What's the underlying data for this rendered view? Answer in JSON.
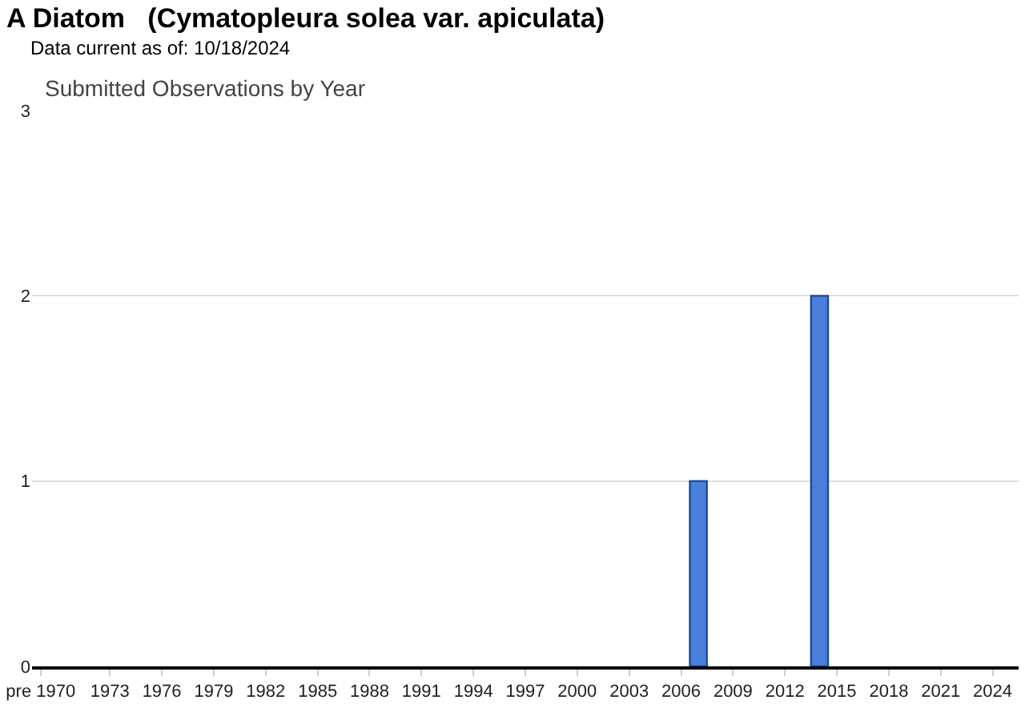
{
  "chart_data": {
    "type": "bar",
    "title": "A Diatom   (Cymatopleura solea var. apiculata)",
    "subtitle": "Data current as of: 10/18/2024",
    "annotations": [
      "Submitted Observations by Year"
    ],
    "categories": [
      "pre 1970",
      null,
      null,
      null,
      "1973",
      null,
      null,
      "1976",
      null,
      null,
      "1979",
      null,
      null,
      "1982",
      null,
      null,
      "1985",
      null,
      null,
      "1988",
      null,
      null,
      "1991",
      null,
      null,
      "1994",
      null,
      null,
      "1997",
      null,
      null,
      "2000",
      null,
      null,
      "2003",
      null,
      null,
      "2006",
      null,
      null,
      "2009",
      null,
      null,
      "2012",
      null,
      null,
      "2015",
      null,
      null,
      "2018",
      null,
      null,
      "2021",
      null,
      null,
      "2024",
      null
    ],
    "values": [
      0,
      0,
      0,
      0,
      0,
      0,
      0,
      0,
      0,
      0,
      0,
      0,
      0,
      0,
      0,
      0,
      0,
      0,
      0,
      0,
      0,
      0,
      0,
      0,
      0,
      0,
      0,
      0,
      0,
      0,
      0,
      0,
      0,
      0,
      0,
      0,
      0,
      0,
      1,
      0,
      0,
      0,
      0,
      0,
      0,
      2,
      0,
      0,
      0,
      0,
      0,
      0,
      0,
      0,
      0,
      0,
      0
    ],
    "color": "#4a80dc",
    "ylim": [
      0,
      3
    ],
    "yticks": [
      0,
      1,
      2,
      3
    ],
    "grid": "y",
    "legend": false
  }
}
